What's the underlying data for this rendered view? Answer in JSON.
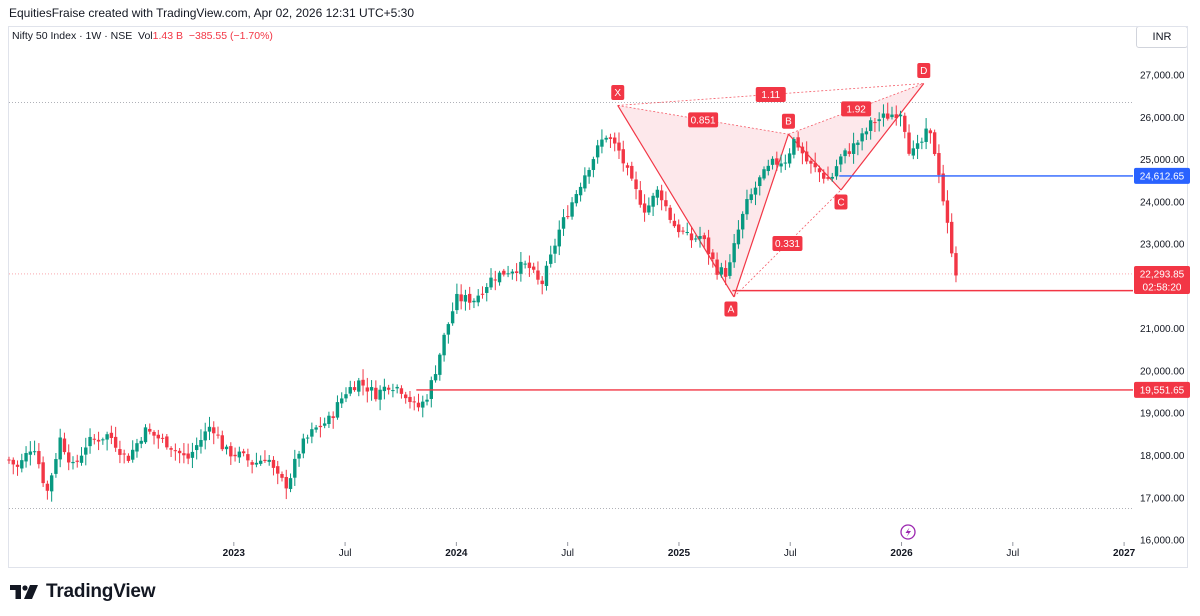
{
  "header": {
    "author_line": "EquitiesFraise created with TradingView.com, Apr 02, 2026 12:31 UTC+5:30",
    "symbol": "Nifty 50 Index · 1W · NSE",
    "vol_label": "Vol",
    "vol_value": "1.43 B",
    "change": "−385.55 (−1.70%)",
    "currency": "INR"
  },
  "footer": {
    "brand": "TradingView"
  },
  "colors": {
    "up": "#089981",
    "down": "#f23645",
    "blue": "#2962ff",
    "pattern_fill": "#fde2e6"
  },
  "chart_data": {
    "type": "candlestick",
    "ylim": [
      15800,
      27700
    ],
    "y_ticks": [
      "27,000.00",
      "26,000.00",
      "25,000.00",
      "24,000.00",
      "23,000.00",
      "22,000.00",
      "21,000.00",
      "20,000.00",
      "19,000.00",
      "18,000.00",
      "17,000.00",
      "16,000.00"
    ],
    "x_ticks": [
      {
        "label": "2023",
        "year": 2023.0,
        "bold": true
      },
      {
        "label": "Jul",
        "year": 2023.5,
        "bold": false
      },
      {
        "label": "2024",
        "year": 2024.0,
        "bold": true
      },
      {
        "label": "Jul",
        "year": 2024.5,
        "bold": false
      },
      {
        "label": "2025",
        "year": 2025.0,
        "bold": true
      },
      {
        "label": "Jul",
        "year": 2025.5,
        "bold": false
      },
      {
        "label": "2026",
        "year": 2026.0,
        "bold": true
      },
      {
        "label": "Jul",
        "year": 2026.5,
        "bold": false
      },
      {
        "label": "2027",
        "year": 2027.0,
        "bold": true
      }
    ],
    "xlim": [
      2021.99,
      2027.04
    ],
    "anchors": [
      [
        2021.99,
        17900
      ],
      [
        2022.03,
        17700
      ],
      [
        2022.1,
        18300
      ],
      [
        2022.16,
        17100
      ],
      [
        2022.22,
        18400
      ],
      [
        2022.28,
        17700
      ],
      [
        2022.34,
        18300
      ],
      [
        2022.44,
        18500
      ],
      [
        2022.52,
        17900
      ],
      [
        2022.6,
        18600
      ],
      [
        2022.7,
        18300
      ],
      [
        2022.79,
        17900
      ],
      [
        2022.9,
        18750
      ],
      [
        2022.96,
        18100
      ],
      [
        2023.03,
        18000
      ],
      [
        2023.09,
        17800
      ],
      [
        2023.15,
        18000
      ],
      [
        2023.19,
        17500
      ],
      [
        2023.24,
        17300
      ],
      [
        2023.3,
        18200
      ],
      [
        2023.36,
        18600
      ],
      [
        2023.43,
        18850
      ],
      [
        2023.5,
        19500
      ],
      [
        2023.56,
        19750
      ],
      [
        2023.64,
        19450
      ],
      [
        2023.7,
        19700
      ],
      [
        2023.76,
        19550
      ],
      [
        2023.82,
        19100
      ],
      [
        2023.86,
        19300
      ],
      [
        2023.9,
        19900
      ],
      [
        2023.95,
        20900
      ],
      [
        2024.0,
        21700
      ],
      [
        2024.08,
        21700
      ],
      [
        2024.16,
        22200
      ],
      [
        2024.24,
        22400
      ],
      [
        2024.32,
        22500
      ],
      [
        2024.38,
        22000
      ],
      [
        2024.42,
        22600
      ],
      [
        2024.46,
        23300
      ],
      [
        2024.52,
        24000
      ],
      [
        2024.58,
        24700
      ],
      [
        2024.63,
        25200
      ],
      [
        2024.67,
        25600
      ],
      [
        2024.73,
        25200
      ],
      [
        2024.79,
        24400
      ],
      [
        2024.85,
        23800
      ],
      [
        2024.91,
        24300
      ],
      [
        2024.97,
        23500
      ],
      [
        2025.05,
        23100
      ],
      [
        2025.1,
        23200
      ],
      [
        2025.17,
        22400
      ],
      [
        2025.22,
        22300
      ],
      [
        2025.26,
        23200
      ],
      [
        2025.3,
        23900
      ],
      [
        2025.36,
        24500
      ],
      [
        2025.42,
        24900
      ],
      [
        2025.48,
        25000
      ],
      [
        2025.52,
        25500
      ],
      [
        2025.58,
        24900
      ],
      [
        2025.63,
        24700
      ],
      [
        2025.68,
        24500
      ],
      [
        2025.72,
        25000
      ],
      [
        2025.78,
        25300
      ],
      [
        2025.82,
        25500
      ],
      [
        2025.87,
        25900
      ],
      [
        2025.92,
        26000
      ],
      [
        2025.97,
        26100
      ],
      [
        2026.0,
        26150
      ],
      [
        2026.04,
        25100
      ],
      [
        2026.08,
        25300
      ],
      [
        2026.12,
        25700
      ],
      [
        2026.16,
        25000
      ],
      [
        2026.2,
        23600
      ],
      [
        2026.25,
        22200
      ]
    ],
    "h_lines": [
      {
        "value": 24612.65,
        "color": "blue",
        "from_year": 2025.72,
        "label": "24,612.65"
      },
      {
        "value": 21900,
        "color": "red",
        "from_year": 2025.24,
        "label": ""
      },
      {
        "value": 19551.65,
        "color": "red",
        "from_year": 2023.82,
        "label": "19,551.65"
      }
    ],
    "dotted_lines": [
      26350,
      16750
    ],
    "last_price": {
      "value": 22293.85,
      "label": "22,293.85",
      "timer": "02:58:20"
    },
    "harmonic_points": {
      "X": {
        "year": 2024.725,
        "value": 26280
      },
      "A": {
        "year": 2025.247,
        "value": 21750
      },
      "B": {
        "year": 2025.492,
        "value": 25600
      },
      "C": {
        "year": 2025.728,
        "value": 24280
      },
      "D": {
        "year": 2026.1,
        "value": 26800
      }
    },
    "ratios": {
      "XB": "0.851",
      "XD": "1.11",
      "AC": "0.331",
      "BD": "1.92"
    }
  }
}
